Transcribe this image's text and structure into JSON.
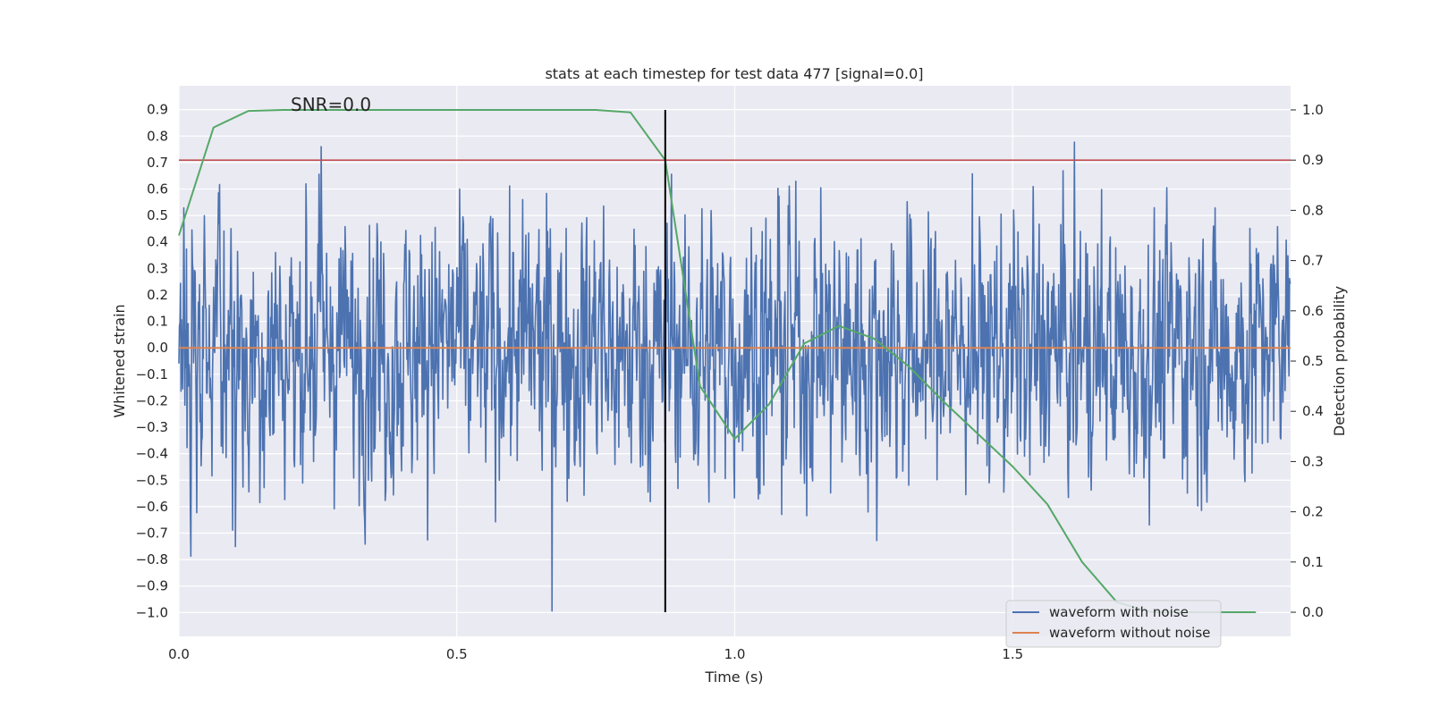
{
  "chart_data": {
    "type": "line",
    "title": "stats at each timestep for test data 477 [signal=0.0]",
    "xlabel": "Time (s)",
    "ylabel": "Whitened strain",
    "y2label": "Detection probability",
    "annotation": "SNR=0.0",
    "xlim": [
      0.0,
      2.0
    ],
    "ylim": [
      -1.09,
      0.99
    ],
    "y2lim": [
      -0.048,
      1.048
    ],
    "xticks": [
      "0.0",
      "0.5",
      "1.0",
      "1.5"
    ],
    "yticks": [
      "0.9",
      "0.8",
      "0.7",
      "0.6",
      "0.5",
      "0.4",
      "0.3",
      "0.2",
      "0.1",
      "0.0",
      "−0.1",
      "−0.2",
      "−0.3",
      "−0.4",
      "−0.5",
      "−0.6",
      "−0.7",
      "−0.8",
      "−0.9",
      "−1.0"
    ],
    "y2ticks": [
      "1.0",
      "0.9",
      "0.8",
      "0.7",
      "0.6",
      "0.5",
      "0.4",
      "0.3",
      "0.2",
      "0.1",
      "0.0"
    ],
    "grid": true,
    "legend_position": "lower-right",
    "series": [
      {
        "name": "waveform with noise",
        "color": "#4c72b0",
        "axis": "left",
        "samples": 2048,
        "amplitude_range": [
          -1.0,
          0.87
        ]
      },
      {
        "name": "waveform without noise",
        "color": "#dd8452",
        "axis": "left",
        "x": [
          0.0,
          2.0
        ],
        "y": [
          0.0,
          0.0
        ]
      },
      {
        "color": "#55a868",
        "axis": "right",
        "x": [
          0.0,
          0.0625,
          0.125,
          0.1875,
          0.25,
          0.3125,
          0.375,
          0.4375,
          0.5,
          0.5625,
          0.625,
          0.6875,
          0.75,
          0.8125,
          0.875,
          0.9375,
          1.0,
          1.0625,
          1.125,
          1.1875,
          1.25,
          1.3125,
          1.375,
          1.4375,
          1.5,
          1.5625,
          1.625,
          1.6875,
          1.75,
          1.8125,
          1.875,
          1.9375
        ],
        "y": [
          0.75,
          0.965,
          0.998,
          1.0,
          1.0,
          1.0,
          1.0,
          1.0,
          1.0,
          1.0,
          1.0,
          1.0,
          1.0,
          0.995,
          0.9,
          0.45,
          0.345,
          0.415,
          0.535,
          0.57,
          0.545,
          0.49,
          0.42,
          0.355,
          0.29,
          0.215,
          0.1,
          0.02,
          0.0,
          0.0,
          0.0,
          0.0
        ]
      }
    ],
    "threshold_line": {
      "color": "#c44e52",
      "value": 0.9,
      "axis": "right"
    },
    "vertical_line": {
      "color": "#000000",
      "x": 0.875,
      "axis": "right",
      "range": [
        0.0,
        1.0
      ]
    }
  }
}
